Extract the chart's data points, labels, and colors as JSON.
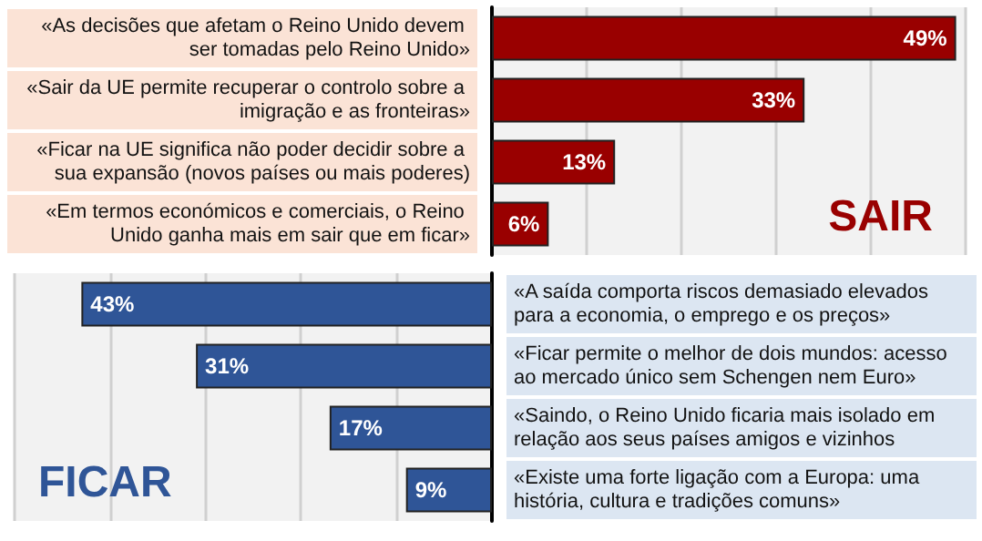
{
  "chart_data": [
    {
      "type": "bar",
      "orientation": "horizontal",
      "title": "SAIR",
      "categories": [
        "«As decisões que afetam o Reino Unido devem ser tomadas pelo Reino Unido»",
        "«Sair da UE permite recuperar o controlo sobre a imigração e as fronteiras»",
        "«Ficar na UE significa não poder decidir sobre a sua expansão (novos países ou mais poderes)",
        "«Em termos económicos e comerciais, o Reino Unido ganha mais em sair que em ficar»"
      ],
      "values": [
        49,
        33,
        13,
        6
      ],
      "value_labels": [
        "49%",
        "33%",
        "13%",
        "6%"
      ],
      "color": "#990000",
      "xlim": [
        0,
        50
      ],
      "xticks": [
        {
          "value": 0,
          "label": null
        },
        {
          "value": 10,
          "label": null
        },
        {
          "value": 20,
          "label": null
        },
        {
          "value": 30,
          "label": null
        },
        {
          "value": 40,
          "label": null
        },
        {
          "value": 50,
          "label": null
        }
      ],
      "grid": "x",
      "tick_labels": "y"
    },
    {
      "type": "bar",
      "orientation": "horizontal",
      "title": "FICAR",
      "categories": [
        "«A saída comporta riscos demasiado elevados para a economia, o emprego e os preços»",
        "«Ficar permite o melhor de dois mundos: acesso ao mercado único sem Schengen nem Euro»",
        "«Saindo, o Reino Unido ficaria mais isolado em relação aos seus países amigos e vizinhos",
        "«Existe uma forte ligação com a Europa: uma história, cultura e tradições comuns»"
      ],
      "values": [
        43,
        31,
        17,
        9
      ],
      "value_labels": [
        "43%",
        "31%",
        "17%",
        "9%"
      ],
      "color": "#2f5597",
      "xlim": [
        50,
        0
      ],
      "xticks": [
        {
          "value": 0,
          "label": null
        },
        {
          "value": 10,
          "label": null
        },
        {
          "value": 20,
          "label": null
        },
        {
          "value": 30,
          "label": null
        },
        {
          "value": 40,
          "label": null
        },
        {
          "value": 50,
          "label": null
        }
      ],
      "grid": "x",
      "tick_labels": "y"
    }
  ]
}
